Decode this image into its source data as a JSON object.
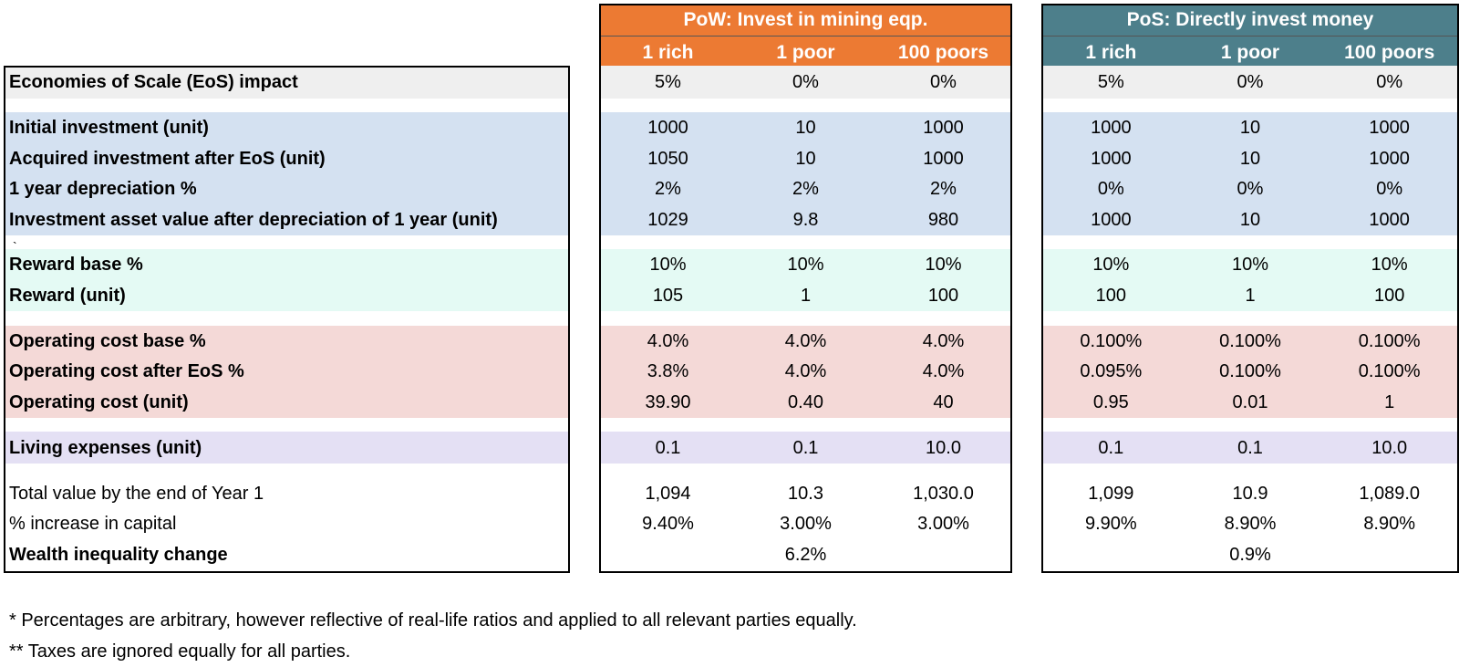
{
  "colors": {
    "pow_accent": "#ec7a33",
    "pos_accent": "#4d7f8b",
    "band_eos": "#efefef",
    "band_investment": "#d4e1f1",
    "band_reward": "#e4faf4",
    "band_operating": "#f4d9d7",
    "band_living": "#e4e0f4"
  },
  "pow": {
    "title": "PoW: Invest in mining eqp.",
    "columns": [
      "1 rich",
      "1 poor",
      "100 poors"
    ],
    "rows": [
      [
        "5%",
        "0%",
        "0%"
      ],
      [
        "1000",
        "10",
        "1000"
      ],
      [
        "1050",
        "10",
        "1000"
      ],
      [
        "2%",
        "2%",
        "2%"
      ],
      [
        "1029",
        "9.8",
        "980"
      ],
      [
        "10%",
        "10%",
        "10%"
      ],
      [
        "105",
        "1",
        "100"
      ],
      [
        "4.0%",
        "4.0%",
        "4.0%"
      ],
      [
        "3.8%",
        "4.0%",
        "4.0%"
      ],
      [
        "39.90",
        "0.40",
        "40"
      ],
      [
        "0.1",
        "0.1",
        "10.0"
      ],
      [
        "1,094",
        "10.3",
        "1,030.0"
      ],
      [
        "9.40%",
        "3.00%",
        "3.00%"
      ],
      [
        "",
        "6.2%",
        ""
      ]
    ]
  },
  "pos": {
    "title": "PoS: Directly invest money",
    "columns": [
      "1 rich",
      "1 poor",
      "100 poors"
    ],
    "rows": [
      [
        "5%",
        "0%",
        "0%"
      ],
      [
        "1000",
        "10",
        "1000"
      ],
      [
        "1000",
        "10",
        "1000"
      ],
      [
        "0%",
        "0%",
        "0%"
      ],
      [
        "1000",
        "10",
        "1000"
      ],
      [
        "10%",
        "10%",
        "10%"
      ],
      [
        "100",
        "1",
        "100"
      ],
      [
        "0.100%",
        "0.100%",
        "0.100%"
      ],
      [
        "0.095%",
        "0.100%",
        "0.100%"
      ],
      [
        "0.95",
        "0.01",
        "1"
      ],
      [
        "0.1",
        "0.1",
        "10.0"
      ],
      [
        "1,099",
        "10.9",
        "1,089.0"
      ],
      [
        "9.90%",
        "8.90%",
        "8.90%"
      ],
      [
        "",
        "0.9%",
        ""
      ]
    ]
  },
  "row_labels": [
    "Economies of Scale (EoS) impact",
    "Initial investment (unit)",
    "Acquired investment after EoS (unit)",
    "1 year depreciation %",
    "Investment asset value after depreciation of 1 year (unit)",
    "Reward base %",
    "Reward (unit)",
    "Operating cost base %",
    "Operating cost after EoS %",
    "Operating cost (unit)",
    "Living expenses (unit)",
    "Total value by the end of Year 1",
    "% increase in capital",
    "Wealth inequality change"
  ],
  "stray_mark": "`",
  "footnotes": [
    "* Percentages are arbitrary, however reflective of real-life ratios and applied to all relevant parties equally.",
    "** Taxes are ignored equally for all parties."
  ]
}
